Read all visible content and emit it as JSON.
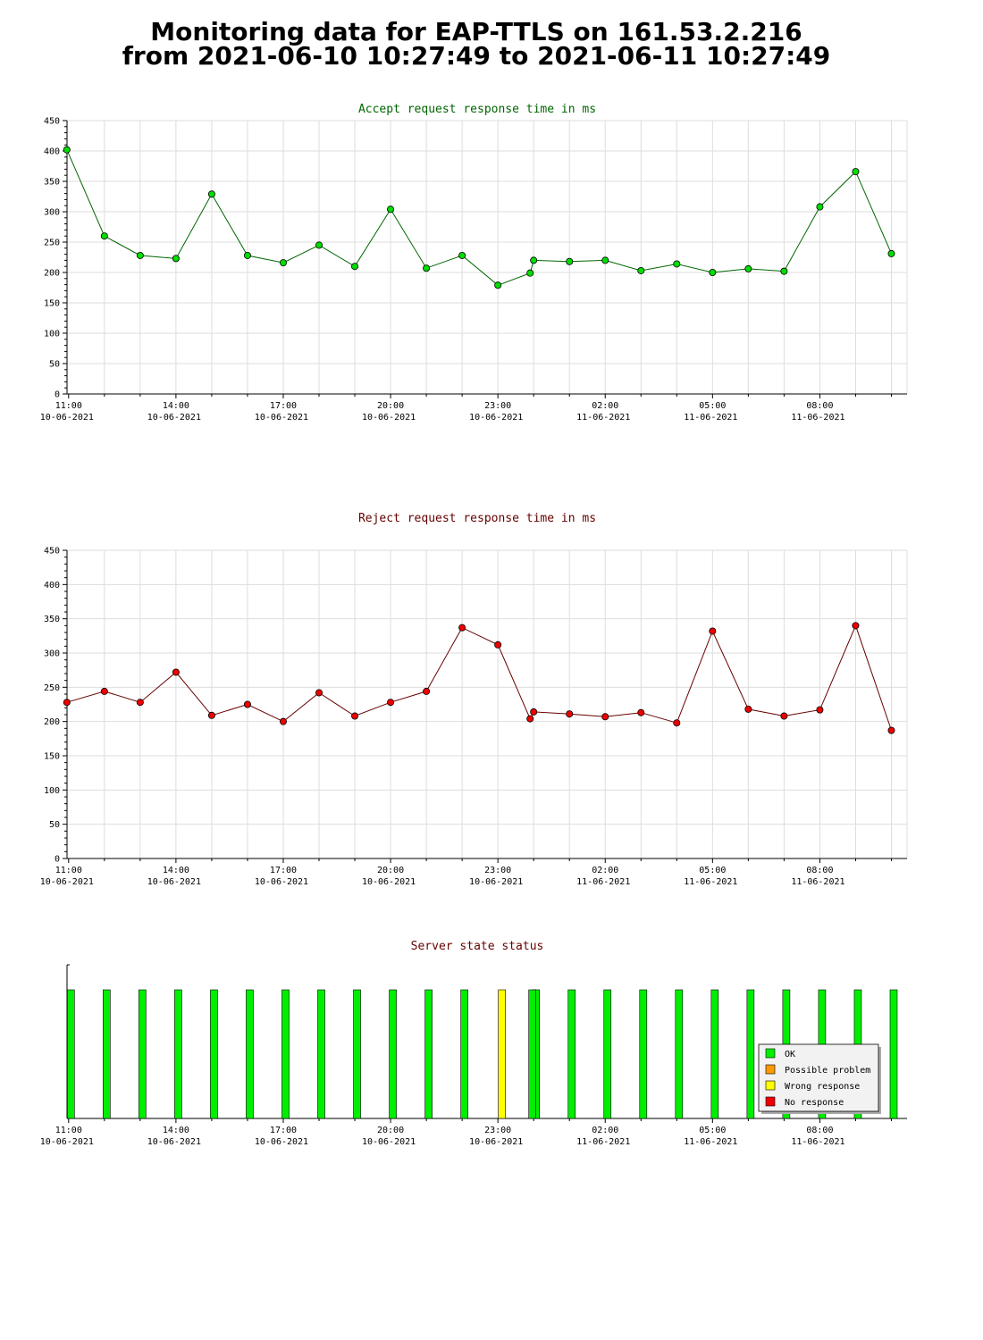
{
  "page": {
    "title_line1": "Monitoring data for EAP-TTLS on 161.53.2.216",
    "title_line2": "from 2021-06-10 10:27:49 to 2021-06-11 10:27:49"
  },
  "x_ticks": [
    {
      "time": "11:00",
      "date": "10-06-2021",
      "hour": 0
    },
    {
      "time": "14:00",
      "date": "10-06-2021",
      "hour": 3
    },
    {
      "time": "17:00",
      "date": "10-06-2021",
      "hour": 6
    },
    {
      "time": "20:00",
      "date": "10-06-2021",
      "hour": 9
    },
    {
      "time": "23:00",
      "date": "10-06-2021",
      "hour": 12
    },
    {
      "time": "02:00",
      "date": "11-06-2021",
      "hour": 15
    },
    {
      "time": "05:00",
      "date": "11-06-2021",
      "hour": 18
    },
    {
      "time": "08:00",
      "date": "11-06-2021",
      "hour": 21
    }
  ],
  "chart_data": [
    {
      "type": "line",
      "title": "Accept request response time in ms",
      "title_color": "#006600",
      "line_color": "#006600",
      "marker_color": "#00dd00",
      "ylim": [
        0,
        450
      ],
      "y_ticks": [
        0,
        50,
        100,
        150,
        200,
        250,
        300,
        350,
        400,
        450
      ],
      "x_hours": [
        -0.05,
        1.0,
        2.0,
        3.0,
        4.0,
        5.0,
        6.0,
        7.0,
        8.0,
        9.0,
        10.0,
        11.0,
        12.0,
        12.9,
        13.0,
        14.0,
        15.0,
        16.0,
        17.0,
        18.0,
        19.0,
        20.0,
        21.0,
        22.0,
        23.0
      ],
      "values": [
        402,
        260,
        228,
        223,
        329,
        228,
        216,
        245,
        210,
        304,
        207,
        228,
        179,
        199,
        220,
        218,
        220,
        203,
        214,
        200,
        206,
        202,
        308,
        366,
        231
      ]
    },
    {
      "type": "line",
      "title": "Reject request response time in ms",
      "title_color": "#660000",
      "line_color": "#660000",
      "marker_color": "#ee0000",
      "ylim": [
        0,
        450
      ],
      "y_ticks": [
        0,
        50,
        100,
        150,
        200,
        250,
        300,
        350,
        400,
        450
      ],
      "x_hours": [
        -0.05,
        1.0,
        2.0,
        3.0,
        4.0,
        5.0,
        6.0,
        7.0,
        8.0,
        9.0,
        10.0,
        11.0,
        12.0,
        12.9,
        13.0,
        14.0,
        15.0,
        16.0,
        17.0,
        18.0,
        19.0,
        20.0,
        21.0,
        22.0,
        23.0
      ],
      "values": [
        228,
        244,
        228,
        272,
        209,
        225,
        200,
        242,
        208,
        228,
        244,
        337,
        312,
        204,
        214,
        211,
        207,
        213,
        198,
        332,
        218,
        208,
        217,
        340,
        187
      ]
    },
    {
      "type": "bar",
      "title": "Server state status",
      "title_color": "#660000",
      "x_hours": [
        0.05,
        1.05,
        2.05,
        3.05,
        4.05,
        5.05,
        6.05,
        7.05,
        8.05,
        9.05,
        10.05,
        11.05,
        12.1,
        13.05,
        14.05,
        15.05,
        16.05,
        17.05,
        18.05,
        19.05,
        20.05,
        21.05,
        22.05,
        23.05
      ],
      "status": [
        "OK",
        "OK",
        "OK",
        "OK",
        "OK",
        "OK",
        "OK",
        "OK",
        "OK",
        "OK",
        "OK",
        "OK",
        "Wrong response",
        "OK",
        "OK",
        "OK",
        "OK",
        "OK",
        "OK",
        "OK",
        "OK",
        "OK",
        "OK",
        "OK"
      ],
      "extra_bar_hour": 12.95,
      "extra_bar_status": "OK",
      "legend": [
        {
          "label": "OK",
          "color": "#00ee00"
        },
        {
          "label": "Possible problem",
          "color": "#ff9900"
        },
        {
          "label": "Wrong response",
          "color": "#ffff00"
        },
        {
          "label": "No response",
          "color": "#ee0000"
        }
      ],
      "legend_position": "bottom-right"
    }
  ]
}
